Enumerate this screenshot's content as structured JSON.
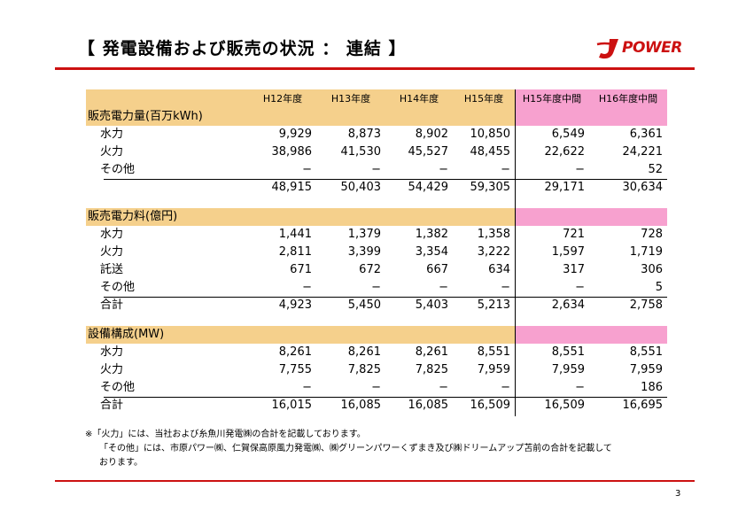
{
  "title": "【 発電設備および販売の状況 ： 連結 】",
  "logo": {
    "text": "POWER",
    "icon": "j-power-logo-mark",
    "color": "#cc1111"
  },
  "columns": [
    "H12年度",
    "H13年度",
    "H14年度",
    "H15年度",
    "H15年度中間",
    "H16年度中間"
  ],
  "sections": [
    {
      "heading": "販売電力量(百万kWh)",
      "rows": [
        {
          "label": "水力",
          "values": [
            "9,929",
            "8,873",
            "8,902",
            "10,850",
            "6,549",
            "6,361"
          ]
        },
        {
          "label": "火力",
          "values": [
            "38,986",
            "41,530",
            "45,527",
            "48,455",
            "22,622",
            "24,221"
          ]
        },
        {
          "label": "その他",
          "values": [
            "−",
            "−",
            "−",
            "−",
            "−",
            "52"
          ]
        }
      ],
      "total": {
        "label": "",
        "values": [
          "48,915",
          "50,403",
          "54,429",
          "59,305",
          "29,171",
          "30,634"
        ]
      }
    },
    {
      "heading": "販売電力料(億円)",
      "rows": [
        {
          "label": "水力",
          "values": [
            "1,441",
            "1,379",
            "1,382",
            "1,358",
            "721",
            "728"
          ]
        },
        {
          "label": "火力",
          "values": [
            "2,811",
            "3,399",
            "3,354",
            "3,222",
            "1,597",
            "1,719"
          ]
        },
        {
          "label": "託送",
          "values": [
            "671",
            "672",
            "667",
            "634",
            "317",
            "306"
          ]
        },
        {
          "label": "その他",
          "values": [
            "−",
            "−",
            "−",
            "−",
            "−",
            "5"
          ]
        }
      ],
      "total": {
        "label": "合計",
        "values": [
          "4,923",
          "5,450",
          "5,403",
          "5,213",
          "2,634",
          "2,758"
        ]
      }
    },
    {
      "heading": "設備構成(MW)",
      "rows": [
        {
          "label": "水力",
          "values": [
            "8,261",
            "8,261",
            "8,261",
            "8,551",
            "8,551",
            "8,551"
          ]
        },
        {
          "label": "火力",
          "values": [
            "7,755",
            "7,825",
            "7,825",
            "7,959",
            "7,959",
            "7,959"
          ]
        },
        {
          "label": "その他",
          "values": [
            "−",
            "−",
            "−",
            "−",
            "−",
            "186"
          ]
        }
      ],
      "total": {
        "label": "合計",
        "values": [
          "16,015",
          "16,085",
          "16,085",
          "16,509",
          "16,509",
          "16,695"
        ]
      }
    }
  ],
  "notes": [
    "※「火力」には、当社および糸魚川発電㈱の合計を記載しております。",
    "「その他」には、市原パワー㈱、仁賀保高原風力発電㈱、㈱グリーンパワーくずまき及び㈱ドリームアップ苫前の合計を記載して",
    "おります。"
  ],
  "page_number": "3",
  "colors": {
    "accent": "#cc1111",
    "header_tan": "#f5d08c",
    "header_pink": "#f7a1cf"
  }
}
